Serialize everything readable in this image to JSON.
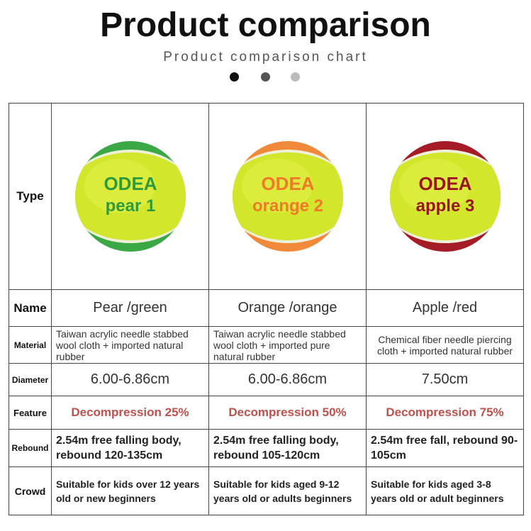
{
  "header": {
    "title": "Product comparison",
    "subtitle": "Product comparison chart"
  },
  "table": {
    "row_labels": [
      "Type",
      "Name",
      "Material",
      "Diameter",
      "Feature",
      "Rebound",
      "Crowd"
    ],
    "products": [
      {
        "ball_brand": "ODEA",
        "ball_model": "pear 1",
        "name": "Pear /green",
        "material": "Taiwan acrylic needle stabbed wool cloth + imported natural rubber",
        "diameter": "6.00-6.86cm",
        "feature": "Decompression 25%",
        "rebound": "2.54m free falling body, rebound 120-135cm",
        "crowd": "Suitable for kids over 12 years old or new beginners"
      },
      {
        "ball_brand": "ODEA",
        "ball_model": "orange 2",
        "name": "Orange /orange",
        "material": "Taiwan acrylic needle stabbed wool cloth + imported pure natural rubber",
        "diameter": "6.00-6.86cm",
        "feature": "Decompression 50%",
        "rebound": "2.54m free falling body, rebound 105-120cm",
        "crowd": "Suitable for kids aged 9-12 years old or adults beginners"
      },
      {
        "ball_brand": "ODEA",
        "ball_model": "apple 3",
        "name": "Apple /red",
        "material": "Chemical fiber needle piercing cloth + imported natural rubber",
        "diameter": "7.50cm",
        "feature": "Decompression 75%",
        "rebound": "2.54m free fall, rebound 90-105cm",
        "crowd": "Suitable for kids aged 3-8 years old or adult beginners"
      }
    ]
  }
}
